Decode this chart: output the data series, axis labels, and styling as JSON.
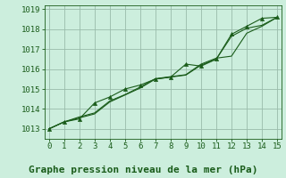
{
  "title": "Graphe pression niveau de la mer (hPa)",
  "bg_color": "#cceedd",
  "grid_color": "#99bbaa",
  "line_color": "#1a5c1a",
  "xlim": [
    -0.3,
    15.3
  ],
  "ylim": [
    1012.5,
    1019.2
  ],
  "xticks": [
    0,
    1,
    2,
    3,
    4,
    5,
    6,
    7,
    8,
    9,
    10,
    11,
    12,
    13,
    14,
    15
  ],
  "yticks": [
    1013,
    1014,
    1015,
    1016,
    1017,
    1018,
    1019
  ],
  "series": [
    [
      1013.0,
      1013.35,
      1013.55,
      1013.75,
      1014.35,
      1014.7,
      1015.05,
      1015.5,
      1015.6,
      1015.7,
      1016.2,
      1016.5,
      1017.65,
      1018.05,
      1018.2,
      1018.6
    ],
    [
      1013.0,
      1013.35,
      1013.6,
      1013.8,
      1014.4,
      1014.72,
      1015.1,
      1015.52,
      1015.62,
      1015.72,
      1016.25,
      1016.55,
      1016.65,
      1017.8,
      1018.15,
      1018.6
    ],
    [
      1013.0,
      1013.35,
      1013.5,
      1014.3,
      1014.6,
      1015.0,
      1015.2,
      1015.5,
      1015.6,
      1016.25,
      1016.15,
      1016.5,
      1017.75,
      1018.15,
      1018.55,
      1018.6
    ]
  ],
  "marker_series_idx": 2,
  "title_fontsize": 8,
  "tick_fontsize": 6.5
}
